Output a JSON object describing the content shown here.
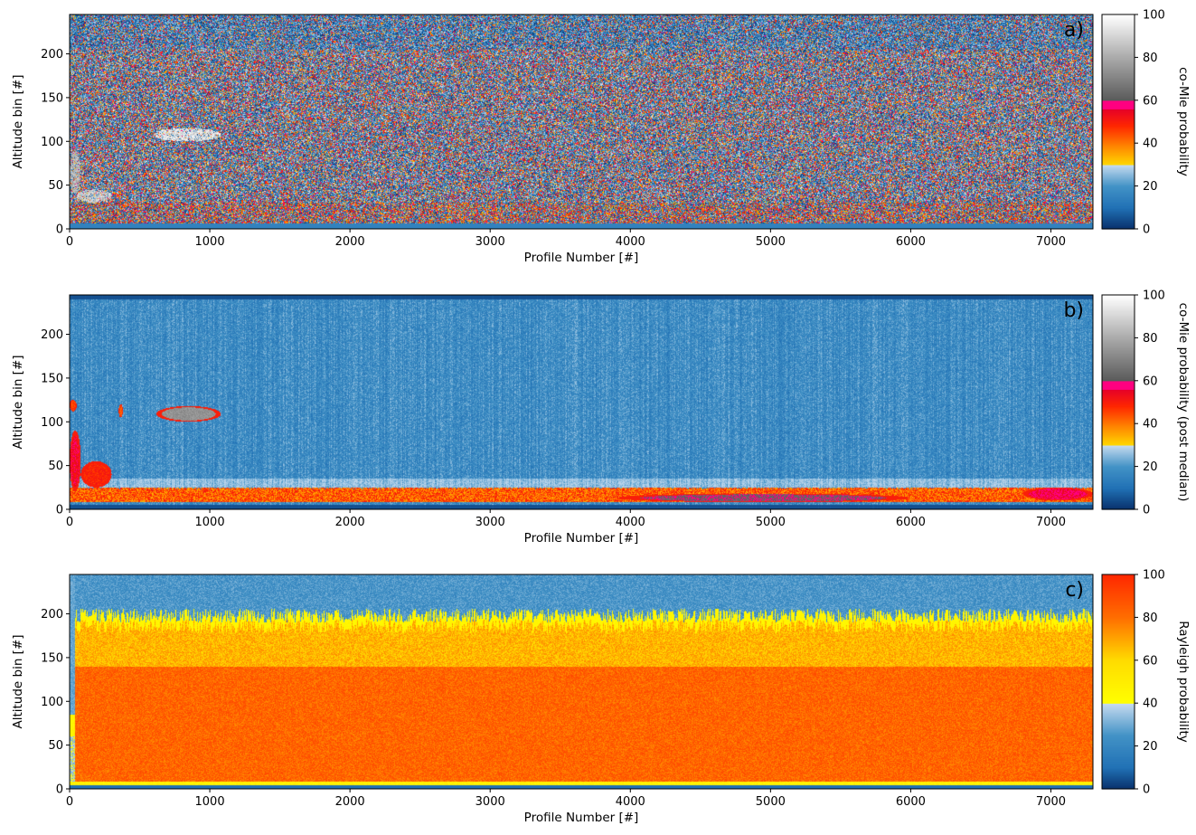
{
  "chart_data": [
    {
      "type": "heatmap",
      "panel_label": "a)",
      "xlabel": "Profile Number [#]",
      "ylabel": "Altitude bin [#]",
      "xlim": [
        0,
        7300
      ],
      "ylim": [
        0,
        245
      ],
      "x_ticks": [
        0,
        1000,
        2000,
        3000,
        4000,
        5000,
        6000,
        7000
      ],
      "y_ticks": [
        0,
        50,
        100,
        150,
        200
      ],
      "colorbar": {
        "label": "co-Mie probability",
        "range": [
          0,
          100
        ],
        "ticks": [
          0,
          20,
          40,
          60,
          80,
          100
        ],
        "colormap": "blue-yellow-red-gray"
      },
      "pattern": "noisy",
      "regions": [
        {
          "x": [
            600,
            1080
          ],
          "y": [
            100,
            115
          ],
          "level": 85
        },
        {
          "x": [
            0,
            80
          ],
          "y": [
            40,
            90
          ],
          "level": 75
        },
        {
          "x": [
            50,
            300
          ],
          "y": [
            30,
            45
          ],
          "level": 80
        }
      ],
      "boundary_altitude_bin": 205
    },
    {
      "type": "heatmap",
      "panel_label": "b)",
      "xlabel": "Profile Number [#]",
      "ylabel": "Altitude bin [#]",
      "xlim": [
        0,
        7300
      ],
      "ylim": [
        0,
        245
      ],
      "x_ticks": [
        0,
        1000,
        2000,
        3000,
        4000,
        5000,
        6000,
        7000
      ],
      "y_ticks": [
        0,
        50,
        100,
        150,
        200
      ],
      "colorbar": {
        "label": "co-Mie probability (post median)",
        "range": [
          0,
          100
        ],
        "ticks": [
          0,
          20,
          40,
          60,
          80,
          100
        ],
        "colormap": "blue-yellow-red-gray"
      },
      "pattern": "smooth",
      "regions": [
        {
          "x": [
            620,
            1080
          ],
          "y": [
            100,
            118
          ],
          "level": 70
        },
        {
          "x": [
            0,
            80
          ],
          "y": [
            20,
            90
          ],
          "level": 50
        },
        {
          "x": [
            80,
            300
          ],
          "y": [
            25,
            55
          ],
          "level": 45
        },
        {
          "x": [
            0,
            50
          ],
          "y": [
            112,
            125
          ],
          "level": 42
        },
        {
          "x": [
            350,
            380
          ],
          "y": [
            105,
            120
          ],
          "level": 40
        },
        {
          "x": [
            3900,
            6000
          ],
          "y": [
            8,
            18
          ],
          "level": 57
        },
        {
          "x": [
            4400,
            5600
          ],
          "y": [
            8,
            16
          ],
          "level": 66
        },
        {
          "x": [
            6800,
            7300
          ],
          "y": [
            10,
            25
          ],
          "level": 52
        }
      ],
      "surface_layer": {
        "y": [
          8,
          25
        ],
        "level": 45
      }
    },
    {
      "type": "heatmap",
      "panel_label": "c)",
      "xlabel": "Profile Number [#]",
      "ylabel": "Altitude bin [#]",
      "xlim": [
        0,
        7300
      ],
      "ylim": [
        0,
        245
      ],
      "x_ticks": [
        0,
        1000,
        2000,
        3000,
        4000,
        5000,
        6000,
        7000
      ],
      "y_ticks": [
        0,
        50,
        100,
        150,
        200
      ],
      "colorbar": {
        "label": "Rayleigh probability",
        "range": [
          0,
          100
        ],
        "ticks": [
          0,
          20,
          40,
          60,
          80,
          100
        ],
        "colormap": "blue-yellow-red"
      },
      "pattern": "rayleigh",
      "top_boundary_altitude_bin": 205
    }
  ]
}
